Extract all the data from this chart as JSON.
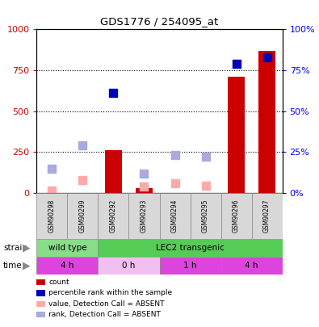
{
  "title": "GDS1776 / 254095_at",
  "samples": [
    "GSM90298",
    "GSM90299",
    "GSM90292",
    "GSM90293",
    "GSM90294",
    "GSM90295",
    "GSM90296",
    "GSM90297"
  ],
  "count_values": [
    null,
    null,
    260,
    30,
    null,
    null,
    710,
    870
  ],
  "rank_values": [
    null,
    null,
    61,
    null,
    null,
    null,
    79,
    83
  ],
  "absent_value": [
    15,
    80,
    null,
    40,
    60,
    45,
    null,
    null
  ],
  "absent_rank": [
    15,
    29,
    null,
    12,
    23,
    22,
    null,
    null
  ],
  "ylim_left": [
    0,
    1000
  ],
  "ylim_right": [
    0,
    100
  ],
  "yticks_left": [
    0,
    250,
    500,
    750,
    1000
  ],
  "yticks_right": [
    0,
    25,
    50,
    75,
    100
  ],
  "strain_groups": [
    {
      "label": "wild type",
      "start": 0,
      "end": 2,
      "color": "#88dd88"
    },
    {
      "label": "LEC2 transgenic",
      "start": 2,
      "end": 8,
      "color": "#55cc55"
    }
  ],
  "time_groups": [
    {
      "label": "4 h",
      "start": 0,
      "end": 2,
      "color": "#dd44dd"
    },
    {
      "label": "0 h",
      "start": 2,
      "end": 4,
      "color": "#f0c0f0"
    },
    {
      "label": "1 h",
      "start": 4,
      "end": 6,
      "color": "#dd44dd"
    },
    {
      "label": "4 h",
      "start": 6,
      "end": 8,
      "color": "#dd44dd"
    }
  ],
  "bar_color": "#cc0000",
  "rank_color": "#0000bb",
  "absent_value_color": "#ffaaaa",
  "absent_rank_color": "#aaaadd",
  "bar_width": 0.55,
  "legend_items": [
    {
      "color": "#cc0000",
      "label": "count",
      "marker": "square"
    },
    {
      "color": "#0000bb",
      "label": "percentile rank within the sample",
      "marker": "square"
    },
    {
      "color": "#ffaaaa",
      "label": "value, Detection Call = ABSENT",
      "marker": "square"
    },
    {
      "color": "#aaaadd",
      "label": "rank, Detection Call = ABSENT",
      "marker": "square"
    }
  ],
  "fig_width": 3.95,
  "fig_height": 4.05,
  "dpi": 100
}
